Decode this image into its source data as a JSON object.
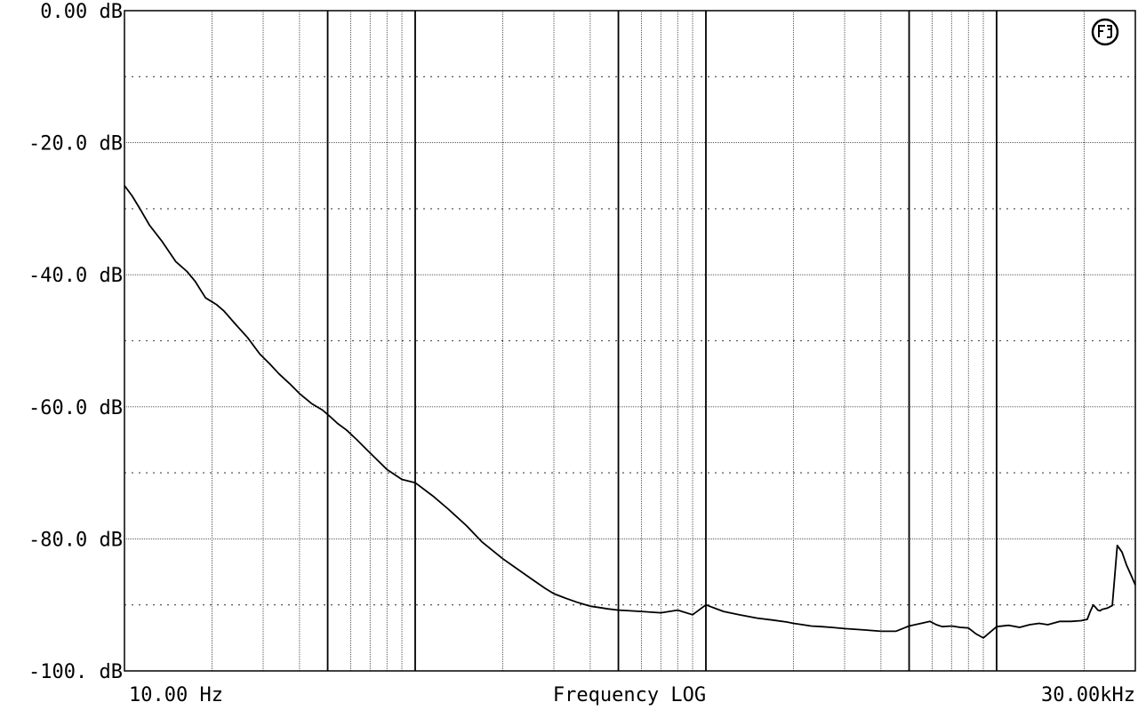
{
  "chart_data": {
    "type": "line",
    "title": "",
    "xlabel": "Frequency LOG",
    "ylabel": "",
    "x_scale": "log",
    "xlim": [
      10,
      30000
    ],
    "ylim": [
      -100,
      0
    ],
    "grid": true,
    "x_label_left": "10.00 Hz",
    "x_label_right": "30.00kHz",
    "y_tick_labels": [
      "0.00 dB",
      "-20.0 dB",
      "-40.0 dB",
      "-60.0 dB",
      "-80.0 dB",
      "-100. dB"
    ],
    "y_ticks": [
      0,
      -20,
      -40,
      -60,
      -80,
      -100
    ],
    "logo_icon": "audio-precision-logo",
    "series": [
      {
        "color": "#000000",
        "x": [
          10,
          10.6,
          11.3,
          12.2,
          13.5,
          15,
          16.4,
          17.5,
          19,
          20.7,
          22,
          24.1,
          26.5,
          29.2,
          31.6,
          34,
          37,
          40,
          44,
          48,
          51,
          54,
          58,
          63,
          70,
          80,
          90,
          100,
          115,
          130,
          150,
          170,
          200,
          250,
          280,
          300,
          330,
          360,
          380,
          400,
          430,
          460,
          500,
          550,
          600,
          700,
          800,
          900,
          1000,
          1150,
          1300,
          1500,
          1700,
          1900,
          2000,
          2150,
          2300,
          2500,
          2700,
          3000,
          3500,
          4000,
          4500,
          5000,
          5500,
          5900,
          6200,
          6500,
          7000,
          7500,
          8000,
          8500,
          9000,
          10000,
          11000,
          12000,
          13000,
          14000,
          15000,
          16500,
          18000,
          19500,
          20500,
          21000,
          21500,
          22000,
          22300,
          22700,
          23000,
          24000,
          25000,
          26000,
          27000,
          28000,
          29000,
          30000
        ],
        "y": [
          -26.5,
          -28,
          -30,
          -32.5,
          -35,
          -38,
          -39.5,
          -41,
          -43.5,
          -44.5,
          -45.5,
          -47.5,
          -49.5,
          -52,
          -53.5,
          -55,
          -56.5,
          -58,
          -59.5,
          -60.5,
          -61.5,
          -62.5,
          -63.5,
          -65,
          -67,
          -69.5,
          -71,
          -71.5,
          -73.5,
          -75.5,
          -78,
          -80.5,
          -83,
          -86,
          -87.5,
          -88.3,
          -89,
          -89.6,
          -89.9,
          -90.2,
          -90.4,
          -90.6,
          -90.8,
          -90.9,
          -91,
          -91.2,
          -90.8,
          -91.5,
          -90,
          -91,
          -91.5,
          -92,
          -92.3,
          -92.6,
          -92.8,
          -93,
          -93.2,
          -93.3,
          -93.4,
          -93.6,
          -93.8,
          -94,
          -94,
          -93.2,
          -92.8,
          -92.5,
          -93,
          -93.3,
          -93.2,
          -93.4,
          -93.5,
          -94.4,
          -95,
          -93.3,
          -93.1,
          -93.4,
          -93,
          -92.8,
          -93,
          -92.5,
          -92.5,
          -92.4,
          -92.2,
          -91,
          -90,
          -90.5,
          -90.8,
          -90.9,
          -90.7,
          -90.5,
          -90.1,
          -81,
          -82,
          -84,
          -85.5,
          -87
        ]
      }
    ]
  }
}
